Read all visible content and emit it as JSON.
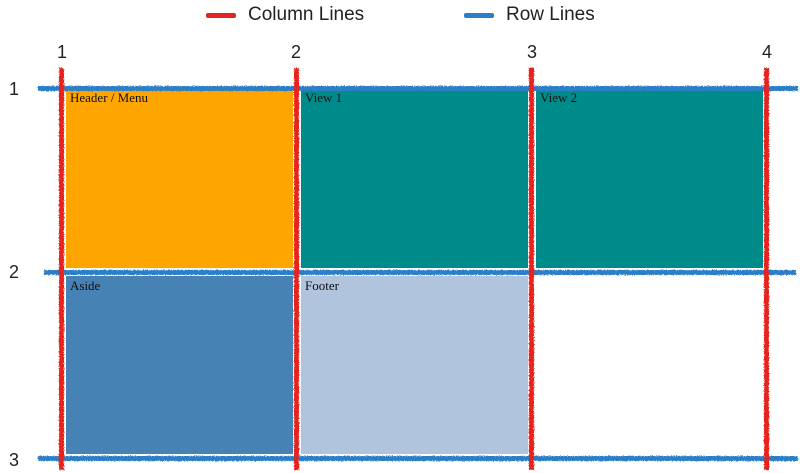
{
  "legend": {
    "column_label": "Column Lines",
    "row_label": "Row Lines"
  },
  "colors": {
    "column_line": "#e8231f",
    "row_line": "#2a7fc8"
  },
  "column_lines": [
    "1",
    "2",
    "3",
    "4"
  ],
  "row_lines": [
    "1",
    "2",
    "3"
  ],
  "areas": [
    {
      "label": "Header / Menu",
      "color": "#ffa500"
    },
    {
      "label": "View 1",
      "color": "#008b8b"
    },
    {
      "label": "View 2",
      "color": "#008b8b"
    },
    {
      "label": "Aside",
      "color": "#4682b4"
    },
    {
      "label": "Footer",
      "color": "#b0c4de"
    }
  ]
}
